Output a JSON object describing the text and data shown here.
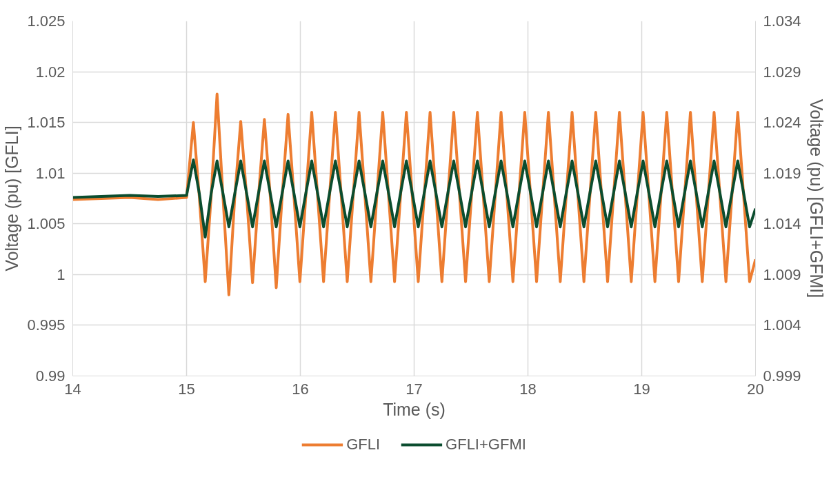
{
  "chart_data": {
    "type": "line",
    "xlabel": "Time (s)",
    "ylabel": "Voltage (pu) [GFLI]",
    "y2label": "Voltage (pu) [GFLI+GFMI]",
    "xlim": [
      14,
      20
    ],
    "xticks": [
      14,
      15,
      16,
      17,
      18,
      19,
      20
    ],
    "ylim": [
      0.99,
      1.025
    ],
    "yticks": [
      0.99,
      0.995,
      1,
      1.005,
      1.01,
      1.015,
      1.02,
      1.025
    ],
    "y2lim": [
      0.999,
      1.034
    ],
    "y2ticks": [
      0.999,
      1.004,
      1.009,
      1.014,
      1.019,
      1.024,
      1.029,
      1.034
    ],
    "grid": true,
    "legend": "bottom",
    "x": [
      14,
      14.25,
      14.5,
      14.75,
      15.0,
      15.06,
      15.112,
      15.164,
      15.216,
      15.268,
      15.32,
      15.372,
      15.424,
      15.476,
      15.528,
      15.58,
      15.632,
      15.684,
      15.736,
      15.788,
      15.84,
      15.892,
      15.944,
      15.996,
      16.048,
      16.1,
      16.152,
      16.204,
      16.256,
      16.308,
      16.36,
      16.412,
      16.464,
      16.516,
      16.568,
      16.62,
      16.672,
      16.724,
      16.776,
      16.828,
      16.88,
      16.932,
      16.984,
      17.036,
      17.088,
      17.14,
      17.192,
      17.244,
      17.296,
      17.348,
      17.4,
      17.452,
      17.504,
      17.556,
      17.608,
      17.66,
      17.712,
      17.764,
      17.816,
      17.868,
      17.92,
      17.972,
      18.024,
      18.076,
      18.128,
      18.18,
      18.232,
      18.284,
      18.336,
      18.388,
      18.44,
      18.492,
      18.544,
      18.596,
      18.648,
      18.7,
      18.752,
      18.804,
      18.856,
      18.908,
      18.96,
      19.012,
      19.064,
      19.116,
      19.168,
      19.22,
      19.272,
      19.324,
      19.376,
      19.428,
      19.48,
      19.532,
      19.584,
      19.636,
      19.688,
      19.74,
      19.792,
      19.844,
      19.896,
      19.948,
      20.0
    ],
    "series": [
      {
        "name": "GFLI",
        "color": "#ed7d31",
        "values": [
          1.0074,
          1.0075,
          1.0076,
          1.0074,
          1.0076,
          1.015,
          1.0077,
          0.9993,
          1.0077,
          1.0178,
          1.0077,
          0.998,
          1.0077,
          1.0151,
          1.0077,
          0.9992,
          1.0077,
          1.0153,
          1.0077,
          0.9987,
          1.0077,
          1.0158,
          1.0077,
          0.9993,
          1.0077,
          1.016,
          1.0077,
          0.9993,
          1.0077,
          1.016,
          1.0077,
          0.9993,
          1.0077,
          1.016,
          1.0077,
          0.9993,
          1.0077,
          1.016,
          1.0077,
          0.9993,
          1.0077,
          1.016,
          1.0077,
          0.9993,
          1.0077,
          1.016,
          1.0077,
          0.9993,
          1.0077,
          1.016,
          1.0077,
          0.9993,
          1.0077,
          1.016,
          1.0077,
          0.9993,
          1.0077,
          1.016,
          1.0077,
          0.9993,
          1.0077,
          1.016,
          1.0077,
          0.9993,
          1.0077,
          1.016,
          1.0077,
          0.9993,
          1.0077,
          1.016,
          1.0077,
          0.9993,
          1.0077,
          1.016,
          1.0077,
          0.9993,
          1.0077,
          1.016,
          1.0077,
          0.9993,
          1.0077,
          1.016,
          1.0077,
          0.9993,
          1.0077,
          1.016,
          1.0077,
          0.9993,
          1.0077,
          1.016,
          1.0077,
          0.9993,
          1.0077,
          1.016,
          1.0077,
          0.9993,
          1.0077,
          1.016,
          1.0077,
          0.9993,
          1.0015
        ]
      },
      {
        "name": "GFLI+GFMI",
        "color": "#0b4d2f",
        "axis": "y2",
        "values": [
          1.0166,
          1.0167,
          1.0168,
          1.0167,
          1.0168,
          1.0203,
          1.017,
          1.0127,
          1.017,
          1.0202,
          1.017,
          1.0137,
          1.017,
          1.0202,
          1.017,
          1.0137,
          1.017,
          1.0202,
          1.017,
          1.0137,
          1.017,
          1.0202,
          1.017,
          1.0137,
          1.017,
          1.0202,
          1.017,
          1.0137,
          1.017,
          1.0202,
          1.017,
          1.0137,
          1.017,
          1.0202,
          1.017,
          1.0137,
          1.017,
          1.0202,
          1.017,
          1.0137,
          1.017,
          1.0202,
          1.017,
          1.0137,
          1.017,
          1.0202,
          1.017,
          1.0137,
          1.017,
          1.0202,
          1.017,
          1.0137,
          1.017,
          1.0202,
          1.017,
          1.0137,
          1.017,
          1.0202,
          1.017,
          1.0137,
          1.017,
          1.0202,
          1.017,
          1.0137,
          1.017,
          1.0202,
          1.017,
          1.0137,
          1.017,
          1.0202,
          1.017,
          1.0137,
          1.017,
          1.0202,
          1.017,
          1.0137,
          1.017,
          1.0202,
          1.017,
          1.0137,
          1.017,
          1.0202,
          1.017,
          1.0137,
          1.017,
          1.0202,
          1.017,
          1.0137,
          1.017,
          1.0202,
          1.017,
          1.0137,
          1.017,
          1.0202,
          1.017,
          1.0137,
          1.017,
          1.0202,
          1.017,
          1.0137,
          1.0155
        ]
      }
    ]
  }
}
